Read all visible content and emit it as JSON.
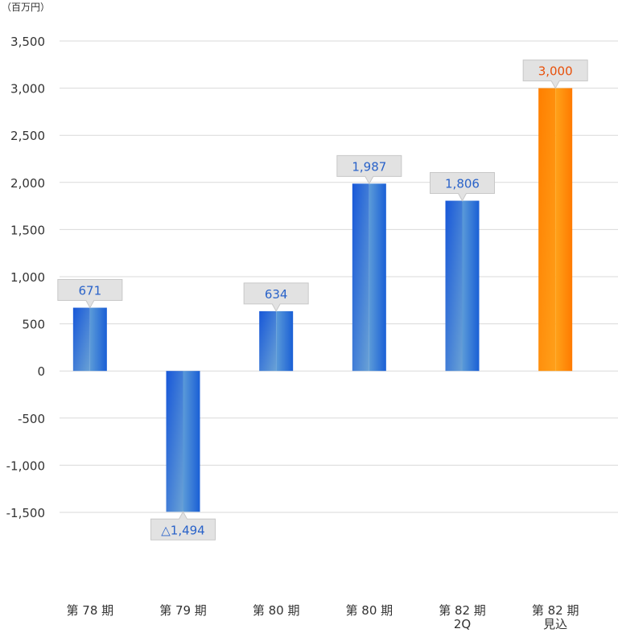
{
  "chart_data": {
    "type": "bar",
    "unit_label": "（百万円）",
    "categories": [
      "第 78 期",
      "第 79 期",
      "第 80 期",
      "第 80 期",
      "第 82 期\n2Q",
      "第 82 期\n見込"
    ],
    "values": [
      671,
      -1494,
      634,
      1987,
      1806,
      3000
    ],
    "data_labels": [
      "671",
      "△1,494",
      "634",
      "1,987",
      "1,806",
      "3,000"
    ],
    "y_ticks": [
      "3,500",
      "3,000",
      "2,500",
      "2,000",
      "1,500",
      "1,000",
      "500",
      "0",
      "-500",
      "-1,000",
      "-1,500"
    ],
    "y_tick_values": [
      3500,
      3000,
      2500,
      2000,
      1500,
      1000,
      500,
      0,
      -500,
      -1000,
      -1500
    ],
    "ylim": [
      -1500,
      3500
    ],
    "grid": true,
    "colors": {
      "actual": "#1a5fd6",
      "actual_light": "#5b9bd8",
      "forecast": "#ff8c00",
      "forecast_light": "#ffa31a",
      "label_actual": "#2a63c9",
      "label_forecast": "#e8500a",
      "callout_bg": "#e2e2e2",
      "grid": "#d9d9d9",
      "axis_text": "#333333"
    },
    "forecast_index": 5
  }
}
